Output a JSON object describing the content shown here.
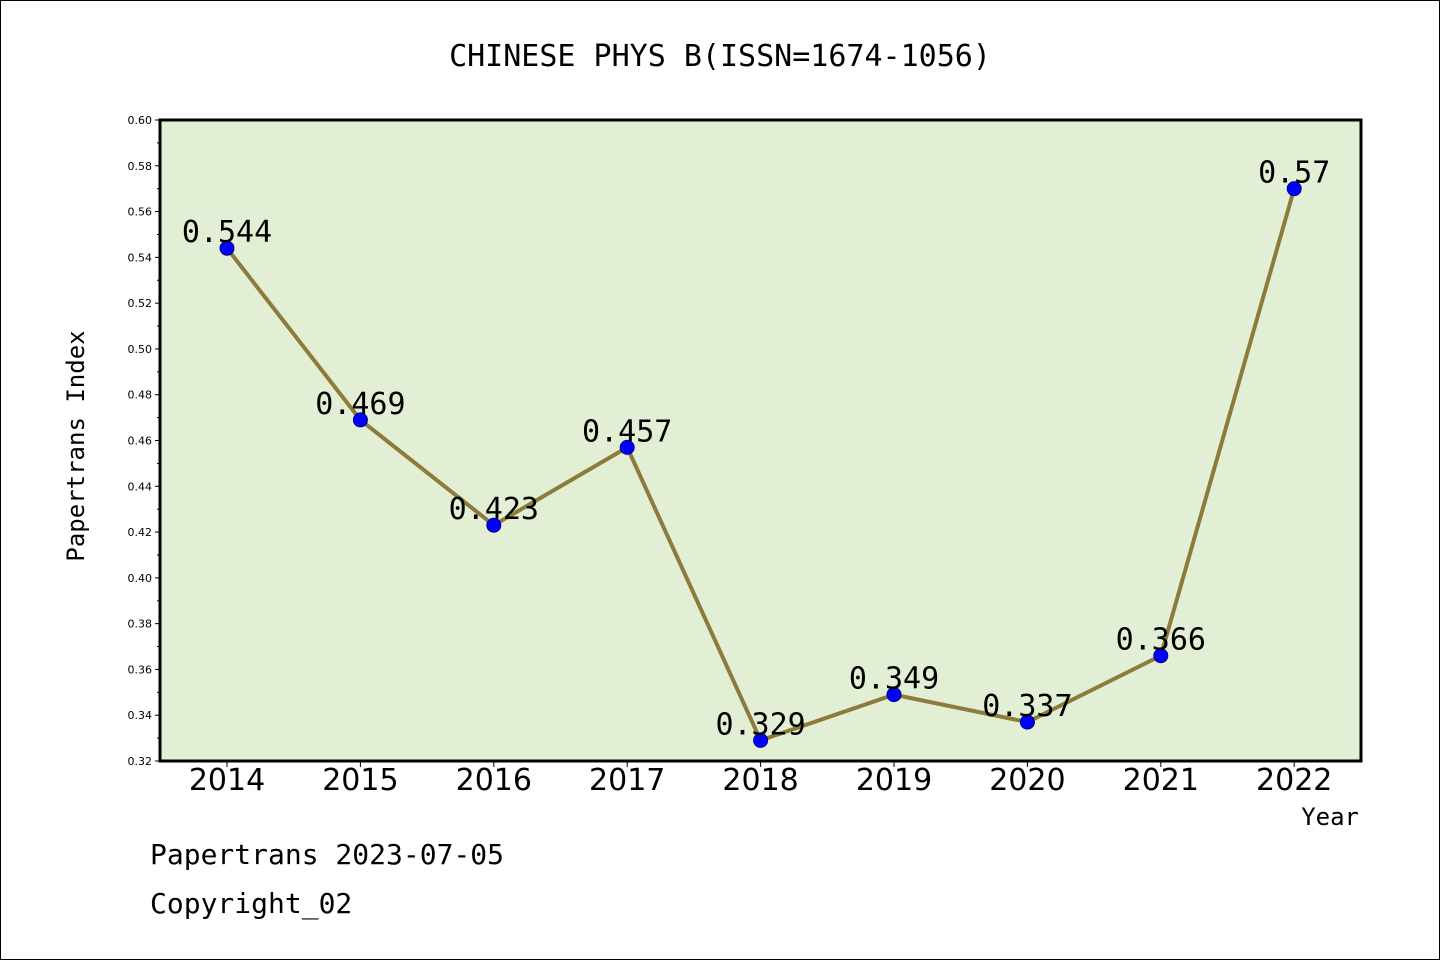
{
  "chart_data": {
    "type": "line",
    "title": "CHINESE PHYS B(ISSN=1674-1056)",
    "xlabel": "Year",
    "ylabel": "Papertrans Index",
    "categories": [
      "2014",
      "2015",
      "2016",
      "2017",
      "2018",
      "2019",
      "2020",
      "2021",
      "2022"
    ],
    "values": [
      0.544,
      0.469,
      0.423,
      0.457,
      0.329,
      0.349,
      0.337,
      0.366,
      0.57
    ],
    "data_labels": [
      "0.544",
      "0.469",
      "0.423",
      "0.457",
      "0.329",
      "0.349",
      "0.337",
      "0.366",
      "0.57"
    ],
    "ylim": [
      0.32,
      0.6
    ],
    "yticks": [
      "0.32",
      "0.34",
      "0.36",
      "0.38",
      "0.40",
      "0.42",
      "0.44",
      "0.46",
      "0.48",
      "0.50",
      "0.52",
      "0.54",
      "0.56",
      "0.58",
      "0.60"
    ],
    "grid": false,
    "legend": "none",
    "colors": {
      "plot_background": "#e2efd5",
      "line": "#8c7b3a",
      "marker": "#0000ff"
    }
  },
  "footer": {
    "line1": "Papertrans 2023-07-05",
    "line2": "Copyright_02"
  }
}
